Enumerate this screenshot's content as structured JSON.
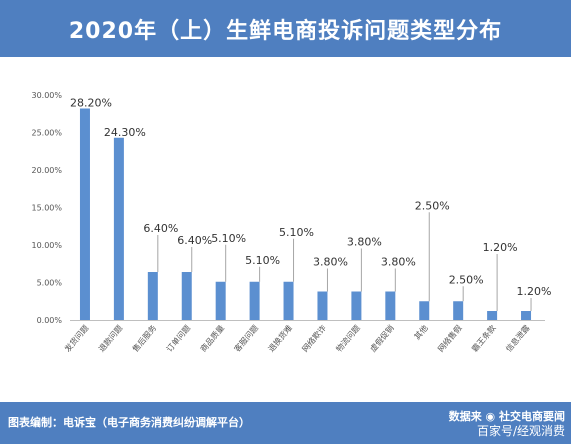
{
  "header": {
    "title": "2020年（上）生鲜电商投诉问题类型分布"
  },
  "footer": {
    "left": "图表编制：电诉宝（电子商务消费纠纷调解平台）",
    "right_source": "数据来",
    "right_wechat": "社交电商要闻",
    "right_baijia": "百家号/经观消费"
  },
  "colors": {
    "bar": "#5b8fd0",
    "header": "#4f7fc0",
    "leader": "#a6a6a6"
  },
  "chart_data": {
    "type": "bar",
    "title": "2020年（上）生鲜电商投诉问题类型分布",
    "xlabel": "",
    "ylabel": "",
    "ylim": [
      0,
      30
    ],
    "yticks": [
      "0.00%",
      "5.00%",
      "10.00%",
      "15.00%",
      "20.00%",
      "25.00%",
      "30.00%"
    ],
    "grid": false,
    "categories": [
      "发货问题",
      "退款问题",
      "售后服务",
      "订单问题",
      "商品质量",
      "客服问题",
      "退换货难",
      "网络欺诈",
      "物流问题",
      "虚假促销",
      "其他",
      "网络售假",
      "霸王条款",
      "信息泄露"
    ],
    "values": [
      28.2,
      24.3,
      6.4,
      6.4,
      5.1,
      5.1,
      5.1,
      3.8,
      3.8,
      3.8,
      2.5,
      2.5,
      1.2,
      1.2
    ],
    "data_labels": [
      "28.20%",
      "24.30%",
      "6.40%",
      "6.40%",
      "5.10%",
      "5.10%",
      "5.10%",
      "3.80%",
      "3.80%",
      "3.80%",
      "2.50%",
      "2.50%",
      "1.20%",
      "1.20%"
    ]
  }
}
